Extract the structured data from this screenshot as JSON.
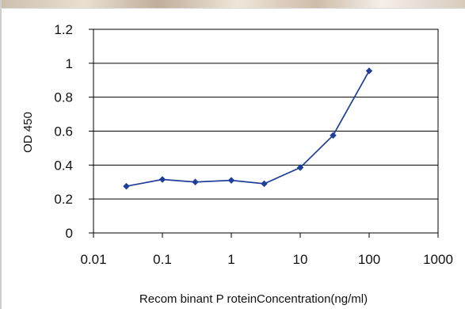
{
  "chart_data": {
    "type": "line",
    "xscale": "log",
    "x": [
      0.03,
      0.1,
      0.3,
      1,
      3,
      10,
      30,
      100
    ],
    "series": [
      {
        "values": [
          0.275,
          0.315,
          0.3,
          0.31,
          0.29,
          0.385,
          0.575,
          0.955
        ]
      }
    ],
    "xlabel": "Recom binant P roteinConcentration(ng/ml)",
    "ylabel": "OD 450",
    "xlim": [
      0.01,
      1000
    ],
    "ylim": [
      0,
      1.2
    ],
    "xticks": [
      "0.01",
      "0.1",
      "1",
      "10",
      "100",
      "1000"
    ],
    "yticks": [
      "0",
      "0.2",
      "0.4",
      "0.6",
      "0.8",
      "1",
      "1.2"
    ],
    "grid": "horizontal",
    "colors": {
      "line": "#1f3f99",
      "marker": "#1f3f99",
      "axis": "#000000",
      "grid": "#000000"
    }
  }
}
